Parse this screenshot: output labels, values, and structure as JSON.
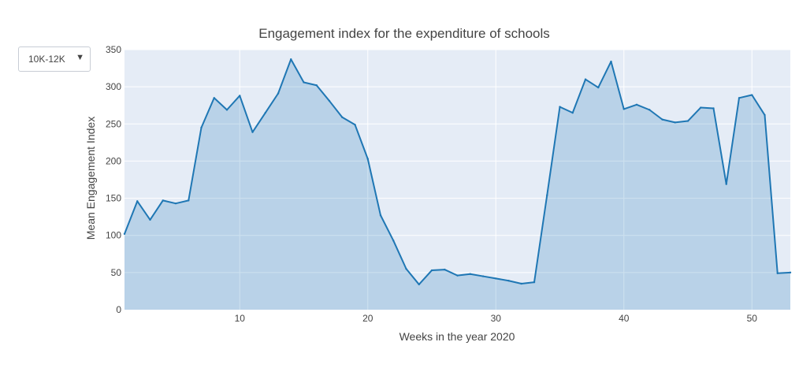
{
  "controls": {
    "dropdown": {
      "selected": "10K-12K",
      "caret": "▼"
    }
  },
  "chart_data": {
    "type": "area",
    "title": "Engagement index for the expenditure of schools",
    "xlabel": "Weeks in the year 2020",
    "ylabel": "Mean Engagement Index",
    "xlim": [
      1,
      53
    ],
    "ylim": [
      0,
      350
    ],
    "x_ticks": [
      10,
      20,
      30,
      40,
      50
    ],
    "y_ticks": [
      0,
      50,
      100,
      150,
      200,
      250,
      300,
      350
    ],
    "grid": true,
    "legend": "none",
    "colors": {
      "line": "#1f77b4",
      "fill": "rgba(31,119,180,0.22)",
      "plot_bg": "#e5ecf6",
      "grid": "#ffffff"
    },
    "series": [
      {
        "x": [
          1,
          2,
          3,
          4,
          5,
          6,
          7,
          8,
          9,
          10,
          11,
          12,
          13,
          14,
          15,
          16,
          17,
          18,
          19,
          20,
          21,
          22,
          23,
          24,
          25,
          26,
          27,
          28,
          29,
          30,
          31,
          32,
          33,
          34,
          35,
          36,
          37,
          38,
          39,
          40,
          41,
          42,
          43,
          44,
          45,
          46,
          47,
          48,
          49,
          50,
          51,
          52,
          53
        ],
        "values": [
          102,
          146,
          121,
          147,
          143,
          147,
          245,
          285,
          269,
          288,
          239,
          265,
          291,
          337,
          306,
          302,
          281,
          259,
          249,
          203,
          127,
          93,
          55,
          34,
          53,
          54,
          46,
          48,
          45,
          42,
          39,
          35,
          37,
          154,
          273,
          265,
          310,
          299,
          334,
          270,
          276,
          269,
          256,
          252,
          254,
          272,
          271,
          169,
          285,
          289,
          262,
          49,
          50
        ]
      }
    ]
  }
}
